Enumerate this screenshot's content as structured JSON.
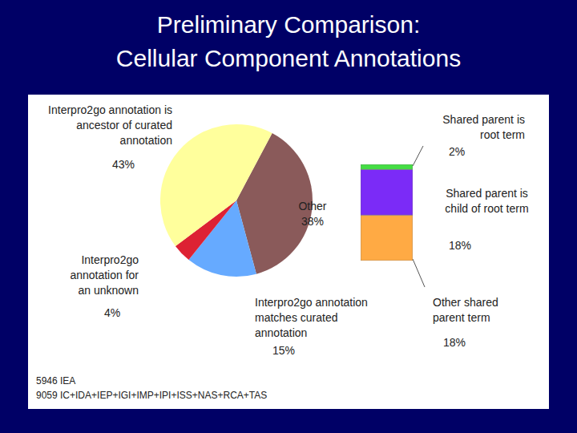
{
  "chart_data": [
    {
      "type": "pie",
      "title": "Preliminary Comparison:",
      "subtitle": "Cellular Component Annotations",
      "categories": [
        "Other",
        "Interpro2go annotation matches curated annotation",
        "Interpro2go annotation for an unknown",
        "Interpro2go annotation is ancestor of curated annotation"
      ],
      "values": [
        38,
        15,
        4,
        43
      ],
      "value_labels": [
        "38%",
        "15%",
        "4%",
        "43%"
      ],
      "colors": [
        "#8a5a5a",
        "#66aaff",
        "#dd2233",
        "#ffff9c"
      ],
      "data_labels": true,
      "annotations": [
        "5946 IEA",
        "9059 IC+IDA+IEP+IGI+IMP+IPI+ISS+NAS+RCA+TAS"
      ]
    },
    {
      "type": "bar",
      "stacked": true,
      "categories": [
        null
      ],
      "ylim": [
        0,
        38
      ],
      "tick_labels": false,
      "data_labels": true,
      "series": [
        {
          "name": "Other shared parent term",
          "color": "#ffaa44",
          "values": [
            18
          ],
          "value_labels": [
            "18%"
          ]
        },
        {
          "name": "Shared parent is child of root term",
          "color": "#7b2bf7",
          "values": [
            18
          ],
          "value_labels": [
            "18%"
          ]
        },
        {
          "name": "Shared parent is root term",
          "color": "#44dd44",
          "values": [
            2
          ],
          "value_labels": [
            "2%"
          ]
        }
      ]
    }
  ]
}
